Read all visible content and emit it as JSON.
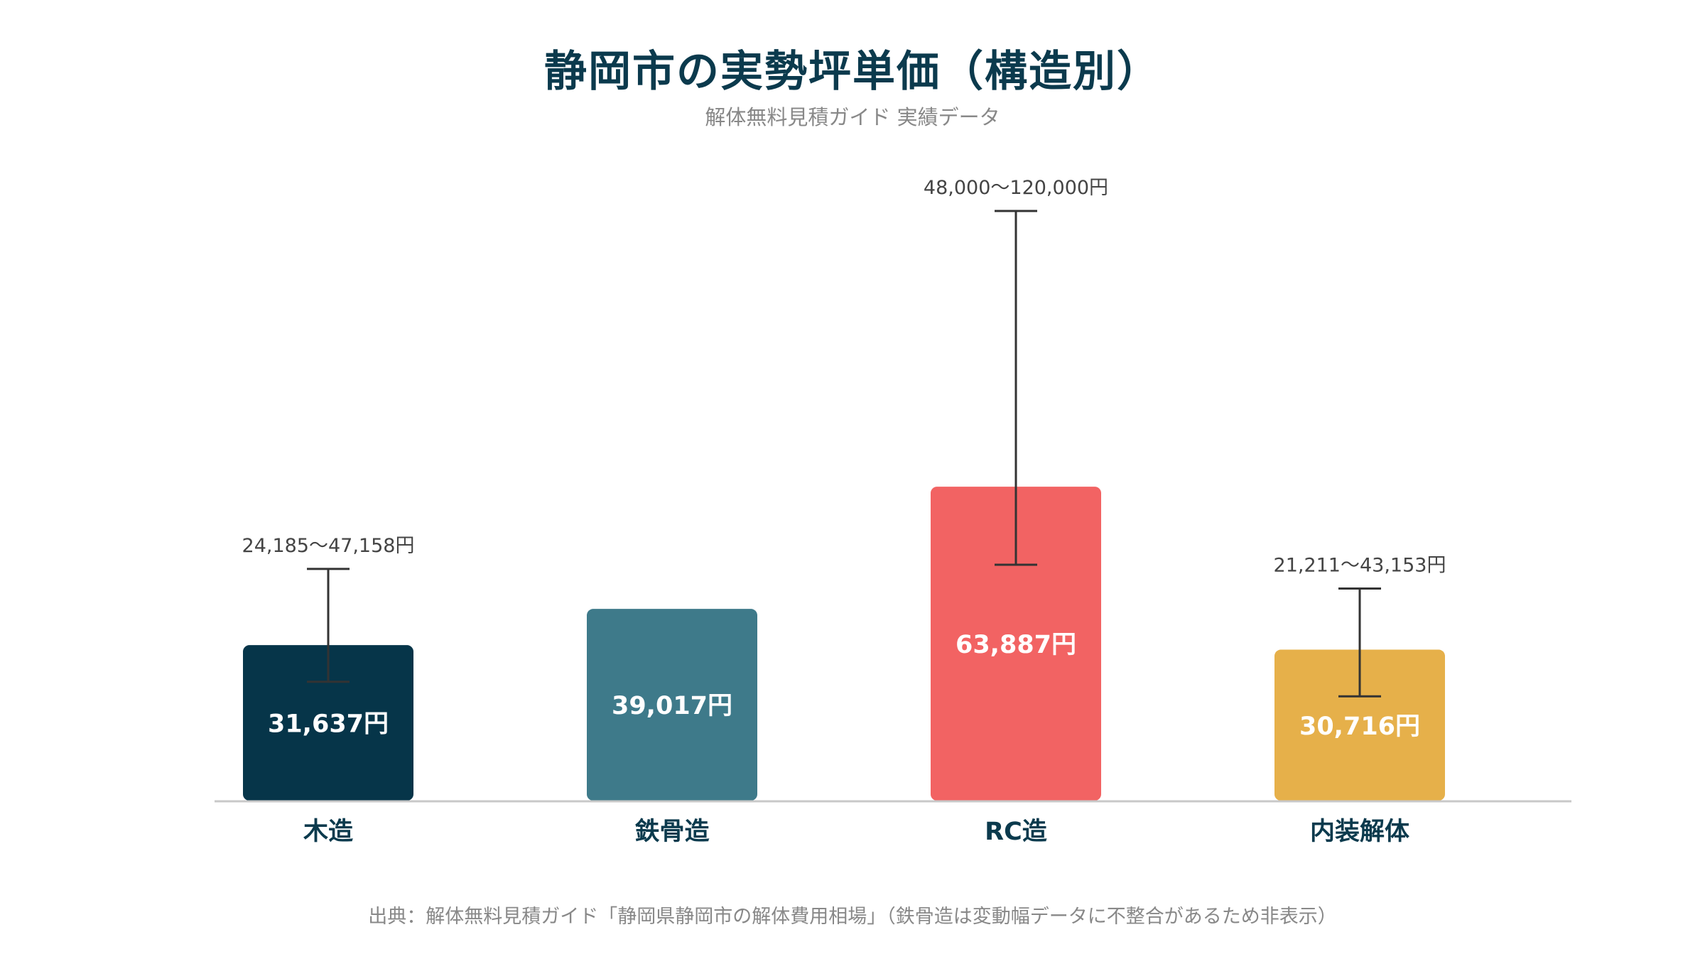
{
  "chart_data": {
    "type": "bar",
    "title": "静岡市の実勢坪単価（構造別）",
    "subtitle": "解体無料見積ガイド 実績データ",
    "categories": [
      "木造",
      "鉄骨造",
      "RC造",
      "内装解体"
    ],
    "values": [
      31637,
      39017,
      63887,
      30716
    ],
    "value_labels": [
      "31,637円",
      "39,017円",
      "63,887円",
      "30,716円"
    ],
    "colors": [
      "#063549",
      "#3e7a8a",
      "#f26363",
      "#e6b04a"
    ],
    "error_ranges": [
      {
        "low": 24185,
        "high": 47158,
        "label": "24,185〜47,158円"
      },
      null,
      {
        "low": 48000,
        "high": 120000,
        "label": "48,000〜120,000円"
      },
      {
        "low": 21211,
        "high": 43153,
        "label": "21,211〜43,153円"
      }
    ],
    "ylim": [
      0,
      132000
    ],
    "grid": false,
    "legend": "none",
    "source": "出典：解体無料見積ガイド「静岡県静岡市の解体費用相場」（鉄骨造は変動幅データに不整合があるため非表示）"
  }
}
